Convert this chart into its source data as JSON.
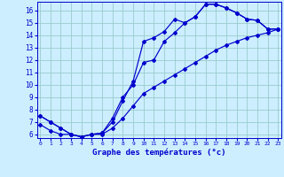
{
  "xlabel": "Graphe des températures (°c)",
  "background_color": "#cceeff",
  "grid_color": "#99cccc",
  "line_color": "#0000cc",
  "x_ticks": [
    0,
    1,
    2,
    3,
    4,
    5,
    6,
    7,
    8,
    9,
    10,
    11,
    12,
    13,
    14,
    15,
    16,
    17,
    18,
    19,
    20,
    21,
    22,
    23
  ],
  "y_ticks": [
    6,
    7,
    8,
    9,
    10,
    11,
    12,
    13,
    14,
    15,
    16
  ],
  "xlim": [
    -0.3,
    23.3
  ],
  "ylim": [
    5.7,
    16.7
  ],
  "line1_x": [
    0,
    1,
    2,
    3,
    4,
    5,
    6,
    7,
    8,
    9,
    10,
    11,
    12,
    13,
    14,
    15,
    16,
    17,
    18,
    19,
    20,
    21,
    22,
    23
  ],
  "line1_y": [
    7.5,
    7.0,
    6.5,
    6.0,
    5.8,
    6.0,
    6.1,
    7.0,
    8.7,
    10.3,
    13.5,
    13.8,
    14.3,
    15.3,
    15.0,
    15.5,
    16.5,
    16.5,
    16.2,
    15.8,
    15.3,
    15.2,
    14.5,
    14.5
  ],
  "line2_x": [
    0,
    1,
    2,
    3,
    4,
    5,
    6,
    7,
    8,
    9,
    10,
    11,
    12,
    13,
    14,
    15,
    16,
    17,
    18,
    19,
    20,
    21,
    22,
    23
  ],
  "line2_y": [
    7.5,
    7.0,
    6.5,
    6.0,
    5.8,
    6.0,
    6.1,
    7.3,
    9.0,
    10.0,
    11.8,
    12.0,
    13.5,
    14.2,
    15.0,
    15.5,
    16.5,
    16.5,
    16.2,
    15.8,
    15.3,
    15.2,
    14.5,
    14.5
  ],
  "line3_x": [
    0,
    1,
    2,
    3,
    4,
    5,
    6,
    7,
    8,
    9,
    10,
    11,
    12,
    13,
    14,
    15,
    16,
    17,
    18,
    19,
    20,
    21,
    22,
    23
  ],
  "line3_y": [
    6.8,
    6.3,
    6.0,
    6.0,
    5.8,
    6.0,
    6.0,
    6.5,
    7.3,
    8.3,
    9.3,
    9.8,
    10.3,
    10.8,
    11.3,
    11.8,
    12.3,
    12.8,
    13.2,
    13.5,
    13.8,
    14.0,
    14.2,
    14.5
  ]
}
